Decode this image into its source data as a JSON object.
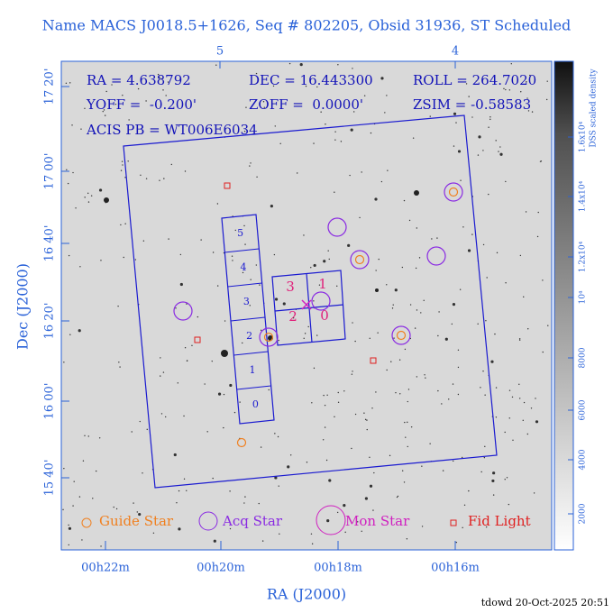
{
  "title": "Name MACS J0018.5+1626, Seq # 802205, Obsid 31936, ST Scheduled",
  "info": {
    "ra": "RA = 4.638792",
    "dec": "DEC = 16.443300",
    "roll": "ROLL = 264.7020",
    "yoff": "YOFF =  -0.200'",
    "zoff": "ZOFF =  0.0000'",
    "zsim": "ZSIM = -0.58583",
    "acis": "ACIS PB = WT006E6034"
  },
  "top_axis": [
    "5",
    "4"
  ],
  "y_ticks": [
    "17 20'",
    "17 00'",
    "16 40'",
    "16 20'",
    "16 00'",
    "15 40'"
  ],
  "x_ticks": [
    "00h22m",
    "00h20m",
    "00h18m",
    "00h16m"
  ],
  "x_label": "RA (J2000)",
  "y_label": "Dec (J2000)",
  "s_chips": [
    "5",
    "4",
    "3",
    "2",
    "1",
    "0"
  ],
  "i_chips": [
    "3",
    "1",
    "2",
    "0"
  ],
  "legend": [
    "Guide Star",
    "Acq Star",
    "Mon Star",
    "Fid Light"
  ],
  "colorbar": {
    "label": "DSS scaled density",
    "ticks": [
      "2000",
      "4000",
      "6000",
      "8000",
      "10⁴",
      "1.2x10⁴",
      "1.4x10⁴",
      "1.6x10⁴"
    ]
  },
  "footer": "tdowd 20-Oct-2025 20:51"
}
